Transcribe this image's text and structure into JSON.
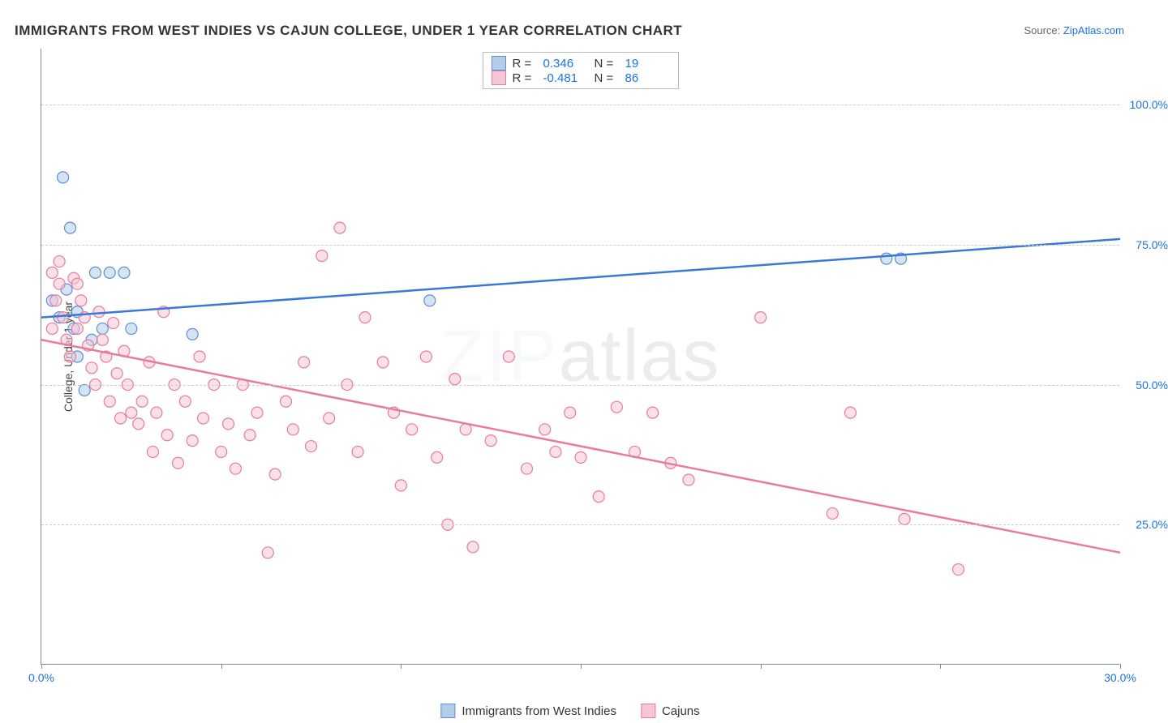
{
  "title": "IMMIGRANTS FROM WEST INDIES VS CAJUN COLLEGE, UNDER 1 YEAR CORRELATION CHART",
  "source_label": "Source: ",
  "source_link": "ZipAtlas.com",
  "ylabel": "College, Under 1 year",
  "watermark": "ZIPatlas",
  "chart": {
    "type": "scatter",
    "xlim": [
      0,
      30
    ],
    "ylim": [
      0,
      110
    ],
    "xticks": [
      0,
      5,
      10,
      15,
      20,
      25,
      30
    ],
    "xtick_labels": [
      "0.0%",
      "",
      "",
      "",
      "",
      "",
      "30.0%"
    ],
    "yticks": [
      25,
      50,
      75,
      100
    ],
    "ytick_labels": [
      "25.0%",
      "50.0%",
      "75.0%",
      "100.0%"
    ],
    "grid_color": "#cccccc",
    "background": "#ffffff",
    "marker_radius": 7,
    "marker_stroke_width": 1.2,
    "line_width": 2.5,
    "series": [
      {
        "name": "Immigrants from West Indies",
        "fill": "#b3cde8",
        "stroke": "#5b8fd6",
        "line_color": "#3b78d8",
        "R": "0.346",
        "N": "19",
        "trend": {
          "x1": 0,
          "y1": 62,
          "x2": 30,
          "y2": 76
        },
        "points": [
          [
            0.3,
            65
          ],
          [
            0.5,
            62
          ],
          [
            0.6,
            87
          ],
          [
            0.8,
            78
          ],
          [
            0.9,
            60
          ],
          [
            1.0,
            63
          ],
          [
            1.2,
            49
          ],
          [
            1.4,
            58
          ],
          [
            1.5,
            70
          ],
          [
            1.7,
            60
          ],
          [
            1.9,
            70
          ],
          [
            2.3,
            70
          ],
          [
            2.5,
            60
          ],
          [
            4.2,
            59
          ],
          [
            10.8,
            65
          ],
          [
            23.5,
            72.5
          ],
          [
            23.9,
            72.5
          ],
          [
            1.0,
            55
          ],
          [
            0.7,
            67
          ]
        ]
      },
      {
        "name": "Cajuns",
        "fill": "#f5c6d3",
        "stroke": "#e87ba0",
        "line_color": "#e87ba0",
        "R": "-0.481",
        "N": "86",
        "trend": {
          "x1": 0,
          "y1": 58,
          "x2": 30,
          "y2": 20
        },
        "points": [
          [
            0.3,
            70
          ],
          [
            0.4,
            65
          ],
          [
            0.5,
            68
          ],
          [
            0.6,
            62
          ],
          [
            0.7,
            58
          ],
          [
            0.8,
            55
          ],
          [
            0.9,
            69
          ],
          [
            1.0,
            60
          ],
          [
            1.1,
            65
          ],
          [
            1.2,
            62
          ],
          [
            1.3,
            57
          ],
          [
            1.4,
            53
          ],
          [
            1.5,
            50
          ],
          [
            1.6,
            63
          ],
          [
            1.7,
            58
          ],
          [
            1.8,
            55
          ],
          [
            1.9,
            47
          ],
          [
            2.0,
            61
          ],
          [
            2.1,
            52
          ],
          [
            2.2,
            44
          ],
          [
            2.3,
            56
          ],
          [
            2.4,
            50
          ],
          [
            2.5,
            45
          ],
          [
            2.7,
            43
          ],
          [
            2.8,
            47
          ],
          [
            3.0,
            54
          ],
          [
            3.1,
            38
          ],
          [
            3.2,
            45
          ],
          [
            3.4,
            63
          ],
          [
            3.5,
            41
          ],
          [
            3.7,
            50
          ],
          [
            3.8,
            36
          ],
          [
            4.0,
            47
          ],
          [
            4.2,
            40
          ],
          [
            4.4,
            55
          ],
          [
            4.5,
            44
          ],
          [
            4.8,
            50
          ],
          [
            5.0,
            38
          ],
          [
            5.2,
            43
          ],
          [
            5.4,
            35
          ],
          [
            5.6,
            50
          ],
          [
            5.8,
            41
          ],
          [
            6.0,
            45
          ],
          [
            6.3,
            20
          ],
          [
            6.5,
            34
          ],
          [
            6.8,
            47
          ],
          [
            7.0,
            42
          ],
          [
            7.3,
            54
          ],
          [
            7.5,
            39
          ],
          [
            7.8,
            73
          ],
          [
            8.0,
            44
          ],
          [
            8.3,
            78
          ],
          [
            8.5,
            50
          ],
          [
            8.8,
            38
          ],
          [
            9.0,
            62
          ],
          [
            9.5,
            54
          ],
          [
            9.8,
            45
          ],
          [
            10.0,
            32
          ],
          [
            10.3,
            42
          ],
          [
            10.7,
            55
          ],
          [
            11.0,
            37
          ],
          [
            11.3,
            25
          ],
          [
            11.5,
            51
          ],
          [
            11.8,
            42
          ],
          [
            12.0,
            21
          ],
          [
            12.5,
            40
          ],
          [
            13.0,
            55
          ],
          [
            13.5,
            35
          ],
          [
            14.0,
            42
          ],
          [
            14.3,
            38
          ],
          [
            14.7,
            45
          ],
          [
            15.0,
            37
          ],
          [
            15.5,
            30
          ],
          [
            16.0,
            46
          ],
          [
            16.5,
            38
          ],
          [
            17.0,
            45
          ],
          [
            17.5,
            36
          ],
          [
            18.0,
            33
          ],
          [
            20.0,
            62
          ],
          [
            22.0,
            27
          ],
          [
            22.5,
            45
          ],
          [
            24.0,
            26
          ],
          [
            25.5,
            17
          ],
          [
            1.0,
            68
          ],
          [
            0.3,
            60
          ],
          [
            0.5,
            72
          ]
        ]
      }
    ]
  },
  "legend_in": {
    "r_label": "R =",
    "n_label": "N ="
  },
  "legend_bottom": [
    {
      "label": "Immigrants from West Indies",
      "fill": "#b3cde8",
      "stroke": "#5b8fd6"
    },
    {
      "label": "Cajuns",
      "fill": "#f5c6d3",
      "stroke": "#e87ba0"
    }
  ]
}
